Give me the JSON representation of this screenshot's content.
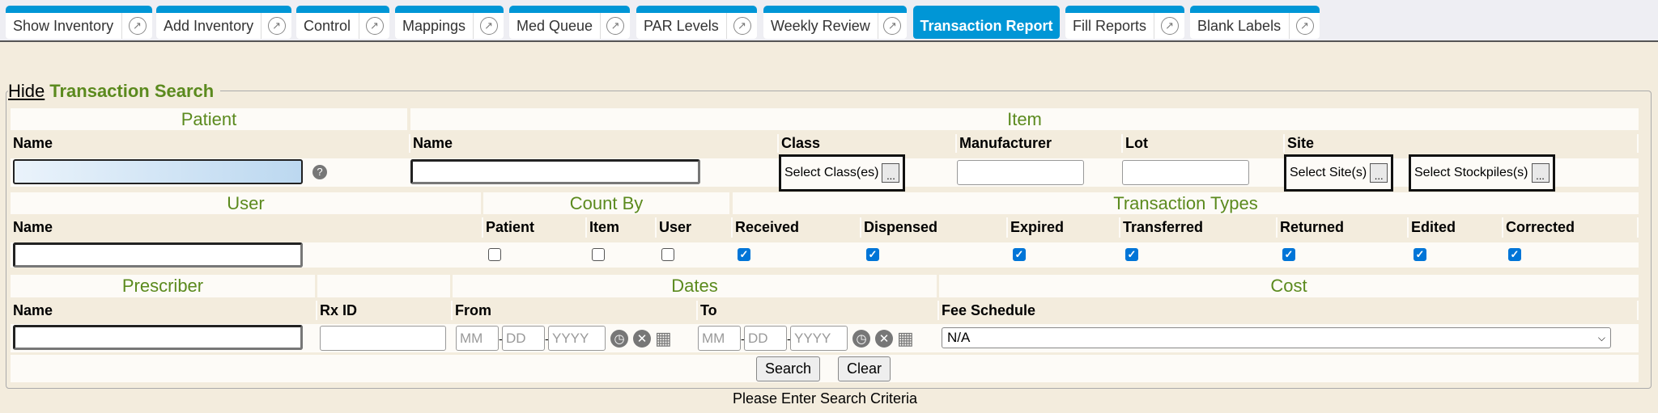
{
  "tabs": [
    {
      "label": "Show Inventory",
      "active": false
    },
    {
      "label": "Add Inventory",
      "active": false
    },
    {
      "label": "Control",
      "active": false
    },
    {
      "label": "Mappings",
      "active": false
    },
    {
      "label": "Med Queue",
      "active": false
    },
    {
      "label": "PAR Levels",
      "active": false
    },
    {
      "label": "Weekly Review",
      "active": false
    },
    {
      "label": "Transaction Report",
      "active": true
    },
    {
      "label": "Fill Reports",
      "active": false
    },
    {
      "label": "Blank Labels",
      "active": false
    }
  ],
  "search": {
    "hide_link": "Hide",
    "title": "Transaction Search",
    "patient": {
      "header": "Patient",
      "name_label": "Name",
      "name_value": "",
      "help_icon": "?"
    },
    "item": {
      "header": "Item",
      "name_label": "Name",
      "class_label": "Class",
      "class_button": "Select Class(es)",
      "manufacturer_label": "Manufacturer",
      "lot_label": "Lot",
      "site_label": "Site",
      "site_button": "Select Site(s)",
      "stockpiles_button": "Select Stockpiles(s)",
      "more": "..."
    },
    "user": {
      "header": "User",
      "name_label": "Name"
    },
    "count_by": {
      "header": "Count By",
      "options": [
        {
          "label": "Patient",
          "checked": false
        },
        {
          "label": "Item",
          "checked": false
        },
        {
          "label": "User",
          "checked": false
        }
      ]
    },
    "transaction_types": {
      "header": "Transaction Types",
      "options": [
        {
          "label": "Received",
          "checked": true
        },
        {
          "label": "Dispensed",
          "checked": true
        },
        {
          "label": "Expired",
          "checked": true
        },
        {
          "label": "Transferred",
          "checked": true
        },
        {
          "label": "Returned",
          "checked": true
        },
        {
          "label": "Edited",
          "checked": true
        },
        {
          "label": "Corrected",
          "checked": true
        }
      ]
    },
    "prescriber": {
      "header": "Prescriber",
      "name_label": "Name",
      "rx_label": "Rx ID"
    },
    "dates": {
      "header": "Dates",
      "from_label": "From",
      "to_label": "To",
      "mm": "MM",
      "dd": "DD",
      "yyyy": "YYYY",
      "sep": "-"
    },
    "cost": {
      "header": "Cost",
      "fee_label": "Fee Schedule",
      "fee_value": "N/A"
    },
    "search_button": "Search",
    "clear_button": "Clear"
  },
  "status": "Please Enter Search Criteria",
  "colors": {
    "tab_blue": "#0096d6",
    "header_green": "#5b8a1e",
    "background": "#f3ecdd"
  }
}
